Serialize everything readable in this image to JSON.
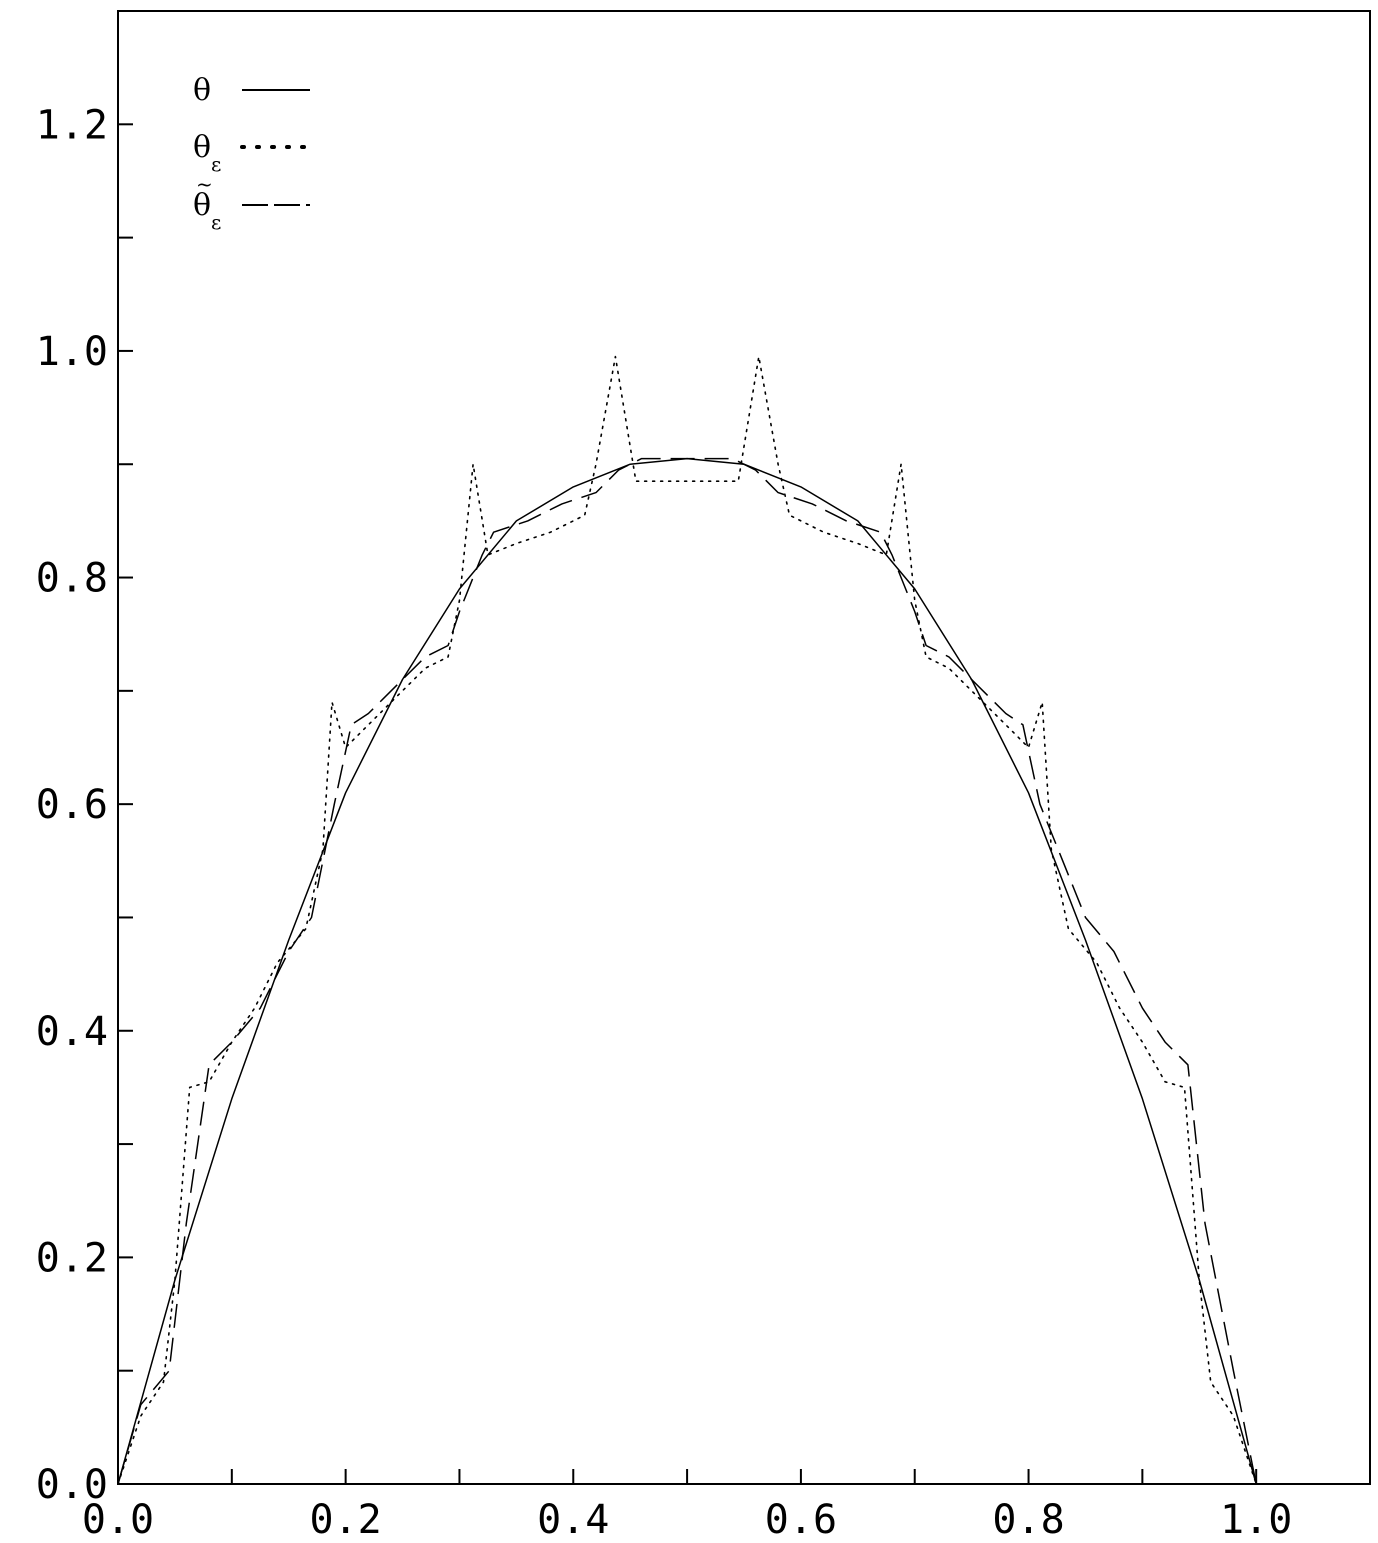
{
  "chart_data": {
    "type": "line",
    "title": "",
    "xlabel": "",
    "ylabel": "",
    "xlim": [
      0.0,
      1.1
    ],
    "ylim": [
      0.0,
      1.3
    ],
    "grid": false,
    "legend_position": "top-left",
    "x_ticks": [
      0.0,
      0.1,
      0.2,
      0.3,
      0.4,
      0.5,
      0.6,
      0.7,
      0.8,
      0.9,
      1.0,
      1.1
    ],
    "x_tick_labels": [
      {
        "value": 0.0,
        "label": "0.0"
      },
      {
        "value": 0.2,
        "label": "0.2"
      },
      {
        "value": 0.4,
        "label": "0.4"
      },
      {
        "value": 0.6,
        "label": "0.6"
      },
      {
        "value": 0.8,
        "label": "0.8"
      },
      {
        "value": 1.0,
        "label": "1.0"
      }
    ],
    "y_ticks": [
      0.0,
      0.1,
      0.2,
      0.3,
      0.4,
      0.5,
      0.6,
      0.7,
      0.8,
      0.9,
      1.0,
      1.1,
      1.2
    ],
    "y_tick_labels": [
      {
        "value": 0.0,
        "label": "0.0"
      },
      {
        "value": 0.2,
        "label": "0.2"
      },
      {
        "value": 0.4,
        "label": "0.4"
      },
      {
        "value": 0.6,
        "label": "0.6"
      },
      {
        "value": 0.8,
        "label": "0.8"
      },
      {
        "value": 1.0,
        "label": "1.0"
      },
      {
        "value": 1.2,
        "label": "1.2"
      }
    ],
    "series": [
      {
        "name": "θ",
        "legend_symbol": "θ",
        "legend_subscript": "",
        "legend_tilde": false,
        "style": "solid",
        "x": [
          0.0,
          0.05,
          0.1,
          0.15,
          0.2,
          0.25,
          0.3,
          0.35,
          0.4,
          0.45,
          0.5,
          0.55,
          0.6,
          0.65,
          0.7,
          0.75,
          0.8,
          0.85,
          0.9,
          0.95,
          1.0
        ],
        "y": [
          0.0,
          0.18,
          0.34,
          0.48,
          0.61,
          0.71,
          0.79,
          0.85,
          0.88,
          0.9,
          0.905,
          0.9,
          0.88,
          0.85,
          0.79,
          0.71,
          0.61,
          0.48,
          0.34,
          0.18,
          0.0
        ]
      },
      {
        "name": "θε",
        "legend_symbol": "θ",
        "legend_subscript": "ε",
        "legend_tilde": false,
        "style": "dotted",
        "x": [
          0.0,
          0.02,
          0.04,
          0.05,
          0.063,
          0.08,
          0.1,
          0.12,
          0.14,
          0.165,
          0.18,
          0.188,
          0.2,
          0.22,
          0.25,
          0.27,
          0.29,
          0.3,
          0.312,
          0.325,
          0.35,
          0.38,
          0.41,
          0.42,
          0.437,
          0.455,
          0.5,
          0.545,
          0.563,
          0.58,
          0.59,
          0.62,
          0.65,
          0.675,
          0.688,
          0.7,
          0.71,
          0.73,
          0.75,
          0.78,
          0.8,
          0.812,
          0.82,
          0.835,
          0.86,
          0.88,
          0.9,
          0.92,
          0.937,
          0.95,
          0.96,
          0.98,
          1.0
        ],
        "y": [
          0.0,
          0.06,
          0.09,
          0.18,
          0.35,
          0.355,
          0.39,
          0.42,
          0.46,
          0.49,
          0.56,
          0.69,
          0.65,
          0.67,
          0.7,
          0.72,
          0.73,
          0.78,
          0.9,
          0.82,
          0.83,
          0.84,
          0.855,
          0.9,
          0.995,
          0.885,
          0.885,
          0.885,
          0.995,
          0.9,
          0.855,
          0.84,
          0.83,
          0.82,
          0.9,
          0.78,
          0.73,
          0.72,
          0.7,
          0.67,
          0.65,
          0.69,
          0.56,
          0.49,
          0.46,
          0.42,
          0.39,
          0.355,
          0.35,
          0.18,
          0.09,
          0.06,
          0.0
        ]
      },
      {
        "name": "θ̃ε",
        "legend_symbol": "θ",
        "legend_subscript": "ε",
        "legend_tilde": true,
        "style": "dashed",
        "x": [
          0.0,
          0.02,
          0.045,
          0.06,
          0.08,
          0.1,
          0.125,
          0.15,
          0.17,
          0.18,
          0.19,
          0.205,
          0.22,
          0.25,
          0.27,
          0.29,
          0.3,
          0.32,
          0.33,
          0.36,
          0.39,
          0.42,
          0.44,
          0.46,
          0.5,
          0.54,
          0.56,
          0.58,
          0.61,
          0.64,
          0.67,
          0.68,
          0.7,
          0.71,
          0.73,
          0.75,
          0.78,
          0.795,
          0.81,
          0.83,
          0.85,
          0.875,
          0.9,
          0.92,
          0.94,
          0.955,
          0.98,
          1.0
        ],
        "y": [
          0.0,
          0.07,
          0.1,
          0.23,
          0.37,
          0.39,
          0.42,
          0.47,
          0.5,
          0.55,
          0.6,
          0.67,
          0.68,
          0.71,
          0.73,
          0.74,
          0.77,
          0.82,
          0.84,
          0.85,
          0.865,
          0.875,
          0.895,
          0.905,
          0.905,
          0.905,
          0.895,
          0.875,
          0.865,
          0.85,
          0.84,
          0.82,
          0.77,
          0.74,
          0.73,
          0.71,
          0.68,
          0.67,
          0.6,
          0.55,
          0.5,
          0.47,
          0.42,
          0.39,
          0.37,
          0.23,
          0.1,
          0.0
        ]
      }
    ]
  }
}
